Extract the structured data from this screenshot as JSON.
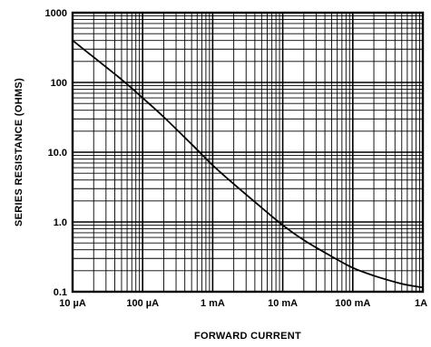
{
  "chart_data": {
    "type": "line",
    "title": "",
    "xlabel": "FORWARD CURRENT",
    "ylabel": "SERIES RESISTANCE (OHMS)",
    "x_scale": "log",
    "y_scale": "log",
    "x_unit": "A",
    "y_unit": "ohms",
    "xlim": [
      1e-05,
      1
    ],
    "ylim": [
      0.1,
      1000
    ],
    "x_ticks": [
      {
        "value": 1e-05,
        "label": "10 µA"
      },
      {
        "value": 0.0001,
        "label": "100 µA"
      },
      {
        "value": 0.001,
        "label": "1 mA"
      },
      {
        "value": 0.01,
        "label": "10 mA"
      },
      {
        "value": 0.1,
        "label": "100 mA"
      },
      {
        "value": 1,
        "label": "1A"
      }
    ],
    "y_ticks": [
      {
        "value": 1000,
        "label": "1000"
      },
      {
        "value": 100,
        "label": "100"
      },
      {
        "value": 10,
        "label": "10.0"
      },
      {
        "value": 1,
        "label": "1.0"
      },
      {
        "value": 0.1,
        "label": "0.1"
      }
    ],
    "grid": true,
    "legend": "none",
    "series": [
      {
        "x": [
          1e-05,
          2e-05,
          5e-05,
          0.0001,
          0.0002,
          0.0005,
          0.001,
          0.002,
          0.005,
          0.01,
          0.02,
          0.05,
          0.1,
          0.2,
          0.5,
          1
        ],
        "y": [
          400,
          230,
          110,
          60,
          32,
          13,
          6.5,
          3.5,
          1.6,
          0.9,
          0.55,
          0.32,
          0.22,
          0.17,
          0.13,
          0.115
        ]
      }
    ]
  }
}
